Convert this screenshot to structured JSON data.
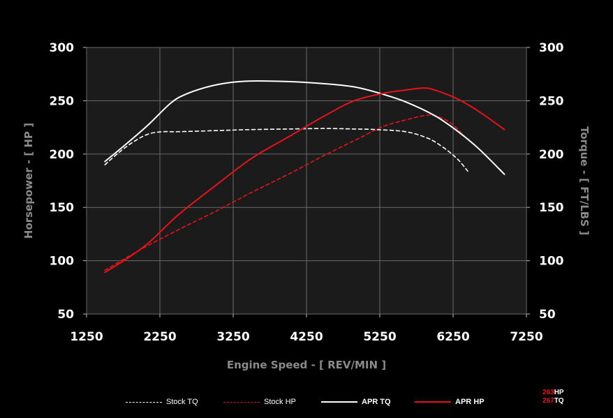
{
  "chart_data": {
    "type": "line",
    "x_axis": {
      "label": "Engine Speed - [ REV/MIN ]",
      "range": [
        1250,
        7250
      ],
      "ticks": [
        1250,
        2250,
        3250,
        4250,
        5250,
        6250,
        7250
      ]
    },
    "y_axis_left": {
      "label": "Horsepower - [ HP ]",
      "range": [
        50,
        300
      ],
      "ticks": [
        50,
        100,
        150,
        200,
        250,
        300
      ]
    },
    "y_axis_right": {
      "label": "Torque - [ FT/LBS ]",
      "range": [
        50,
        300
      ],
      "ticks": [
        50,
        100,
        150,
        200,
        250,
        300
      ]
    },
    "grid": true,
    "legend_position": "bottom",
    "series": [
      {
        "name": "Stock TQ",
        "color": "#ffffff",
        "dash": true,
        "points": [
          [
            1500,
            190
          ],
          [
            1700,
            202
          ],
          [
            1900,
            212
          ],
          [
            2100,
            219
          ],
          [
            2300,
            221
          ],
          [
            2500,
            221
          ],
          [
            3000,
            222
          ],
          [
            3500,
            223
          ],
          [
            4000,
            223.5
          ],
          [
            4500,
            224
          ],
          [
            4900,
            223.5
          ],
          [
            5200,
            223
          ],
          [
            5600,
            221
          ],
          [
            5900,
            215
          ],
          [
            6100,
            207
          ],
          [
            6300,
            196
          ],
          [
            6450,
            184
          ]
        ]
      },
      {
        "name": "Stock HP",
        "color": "#e8121a",
        "dash": true,
        "points": [
          [
            1500,
            91
          ],
          [
            2000,
            111
          ],
          [
            2500,
            129
          ],
          [
            3000,
            146
          ],
          [
            3500,
            164
          ],
          [
            4000,
            181
          ],
          [
            4500,
            199
          ],
          [
            5000,
            216
          ],
          [
            5300,
            226
          ],
          [
            5600,
            232
          ],
          [
            5850,
            236
          ],
          [
            6000,
            236
          ],
          [
            6200,
            230
          ],
          [
            6400,
            217
          ]
        ]
      },
      {
        "name": "APR TQ",
        "color": "#ffffff",
        "dash": false,
        "points": [
          [
            1500,
            193
          ],
          [
            1800,
            210
          ],
          [
            2100,
            228
          ],
          [
            2400,
            248
          ],
          [
            2600,
            256
          ],
          [
            2900,
            263
          ],
          [
            3200,
            267
          ],
          [
            3500,
            268.5
          ],
          [
            4000,
            268
          ],
          [
            4500,
            266
          ],
          [
            4900,
            263
          ],
          [
            5200,
            258
          ],
          [
            5600,
            249
          ],
          [
            6000,
            236
          ],
          [
            6300,
            222
          ],
          [
            6600,
            205
          ],
          [
            6950,
            181
          ]
        ]
      },
      {
        "name": "APR HP",
        "color": "#e8121a",
        "dash": false,
        "points": [
          [
            1500,
            89
          ],
          [
            1800,
            102
          ],
          [
            2100,
            117
          ],
          [
            2500,
            143
          ],
          [
            3000,
            170
          ],
          [
            3500,
            196
          ],
          [
            4000,
            216
          ],
          [
            4500,
            236
          ],
          [
            4900,
            250
          ],
          [
            5300,
            257
          ],
          [
            5600,
            260
          ],
          [
            5850,
            262
          ],
          [
            6000,
            260
          ],
          [
            6300,
            252
          ],
          [
            6600,
            240
          ],
          [
            6950,
            223
          ]
        ]
      }
    ],
    "peak": {
      "hp_value": "263",
      "hp_unit": "HP",
      "tq_value": "267",
      "tq_unit": "TQ"
    }
  }
}
